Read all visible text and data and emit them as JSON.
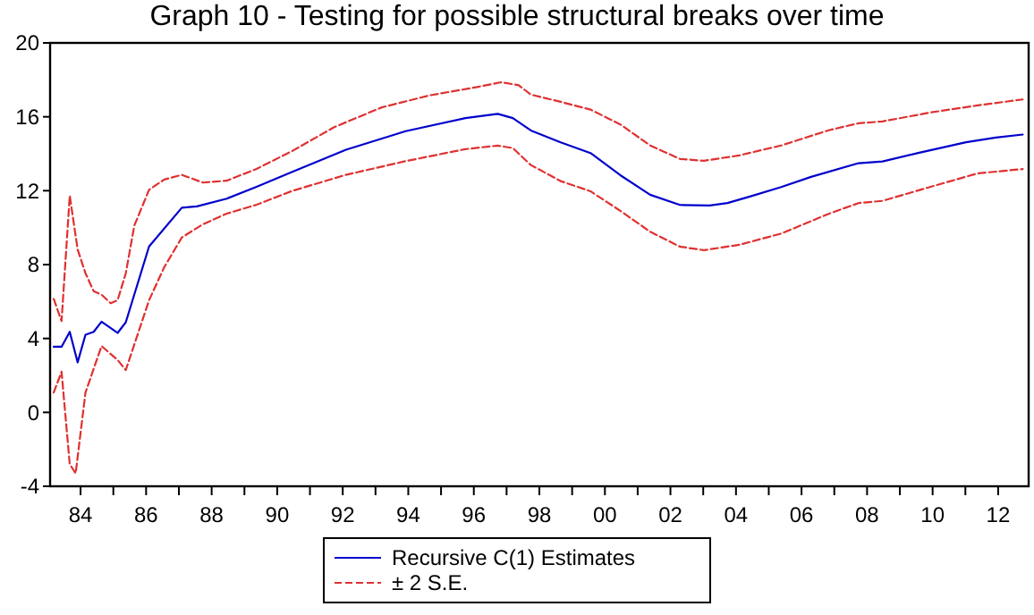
{
  "chart_data": {
    "type": "line",
    "title": "Graph 10 - Testing for possible structural breaks over time",
    "xlim": [
      1983.07,
      2012.93
    ],
    "ylim": [
      -4,
      20
    ],
    "yticks": [
      -4,
      0,
      4,
      8,
      12,
      16,
      20
    ],
    "xticks": [
      {
        "value": 1984,
        "label": "84"
      },
      {
        "value": 1985,
        "label": null
      },
      {
        "value": 1986,
        "label": "86"
      },
      {
        "value": 1987,
        "label": null
      },
      {
        "value": 1988,
        "label": "88"
      },
      {
        "value": 1989,
        "label": null
      },
      {
        "value": 1990,
        "label": "90"
      },
      {
        "value": 1991,
        "label": null
      },
      {
        "value": 1992,
        "label": "92"
      },
      {
        "value": 1993,
        "label": null
      },
      {
        "value": 1994,
        "label": "94"
      },
      {
        "value": 1995,
        "label": null
      },
      {
        "value": 1996,
        "label": "96"
      },
      {
        "value": 1997,
        "label": null
      },
      {
        "value": 1998,
        "label": "98"
      },
      {
        "value": 1999,
        "label": null
      },
      {
        "value": 2000,
        "label": "00"
      },
      {
        "value": 2001,
        "label": null
      },
      {
        "value": 2002,
        "label": "02"
      },
      {
        "value": 2003,
        "label": null
      },
      {
        "value": 2004,
        "label": "04"
      },
      {
        "value": 2005,
        "label": null
      },
      {
        "value": 2006,
        "label": "06"
      },
      {
        "value": 2007,
        "label": null
      },
      {
        "value": 2008,
        "label": "08"
      },
      {
        "value": 2009,
        "label": null
      },
      {
        "value": 2010,
        "label": "10"
      },
      {
        "value": 2011,
        "label": null
      },
      {
        "value": 2012,
        "label": "12"
      }
    ],
    "grid": false,
    "legend": "bottom",
    "marker": "none",
    "series": [
      {
        "name": "Recursive C(1) Estimates",
        "color": "#0000cc",
        "line_style": "solid",
        "x": [
          1983.18,
          1983.42,
          1983.67,
          1983.91,
          1984.15,
          1984.4,
          1984.64,
          1985.13,
          1985.38,
          1986.09,
          1987.09,
          1987.55,
          1988.46,
          1989.37,
          1990.46,
          1992.1,
          1993.92,
          1995.74,
          1996.73,
          1997.19,
          1997.74,
          1998.65,
          1999.56,
          2000.47,
          2001.38,
          2002.29,
          2003.2,
          2003.74,
          2004.47,
          2005.38,
          2006.29,
          2007.74,
          2008.47,
          2009.56,
          2011.02,
          2011.93,
          2012.75
        ],
        "values": [
          3.55,
          3.55,
          4.36,
          2.71,
          4.2,
          4.36,
          4.91,
          4.3,
          4.88,
          8.98,
          11.08,
          11.15,
          11.57,
          12.21,
          13.02,
          14.22,
          15.22,
          15.93,
          16.16,
          15.93,
          15.26,
          14.62,
          14.04,
          12.84,
          11.78,
          11.23,
          11.2,
          11.33,
          11.71,
          12.2,
          12.75,
          13.49,
          13.58,
          14.04,
          14.62,
          14.88,
          15.04
        ]
      },
      {
        "name": "± 2 S.E.",
        "color": "#e03030",
        "line_style": "dashed",
        "x": [
          1983.18,
          1983.42,
          1983.67,
          1983.91,
          1984.15,
          1984.4,
          1984.64,
          1984.92,
          1985.13,
          1985.38,
          1985.64,
          1986.09,
          1986.55,
          1987.09,
          1987.73,
          1988.46,
          1989.37,
          1990.46,
          1991.74,
          1993.19,
          1994.65,
          1996.1,
          1996.83,
          1997.37,
          1997.74,
          1998.65,
          1999.56,
          2000.47,
          2001.38,
          2002.29,
          2003.02,
          2004.1,
          2005.38,
          2006.83,
          2007.74,
          2008.47,
          2009.92,
          2011.38,
          2012.75
        ],
        "values": [
          6.14,
          4.94,
          11.73,
          8.82,
          7.53,
          6.56,
          6.37,
          5.91,
          6.07,
          7.53,
          10.11,
          12.05,
          12.6,
          12.86,
          12.44,
          12.54,
          13.18,
          14.15,
          15.44,
          16.51,
          17.16,
          17.61,
          17.87,
          17.71,
          17.2,
          16.81,
          16.39,
          15.59,
          14.45,
          13.72,
          13.62,
          13.91,
          14.45,
          15.27,
          15.65,
          15.75,
          16.23,
          16.62,
          16.94
        ]
      },
      {
        "color": "#e03030",
        "line_style": "dashed",
        "x": [
          1983.18,
          1983.42,
          1983.67,
          1983.85,
          1984.15,
          1984.4,
          1984.64,
          1985.13,
          1985.38,
          1986.09,
          1986.55,
          1987.09,
          1987.73,
          1988.46,
          1989.37,
          1990.46,
          1992.1,
          1993.92,
          1995.74,
          1996.73,
          1997.19,
          1997.74,
          1998.65,
          1999.56,
          2000.47,
          2001.38,
          2002.29,
          2003.02,
          2004.1,
          2005.38,
          2006.83,
          2007.74,
          2008.47,
          2009.92,
          2011.38,
          2012.75
        ],
        "values": [
          1.07,
          2.2,
          -2.81,
          -3.3,
          1.07,
          2.36,
          3.59,
          2.84,
          2.29,
          6.07,
          7.85,
          9.47,
          10.18,
          10.76,
          11.24,
          11.99,
          12.86,
          13.6,
          14.25,
          14.44,
          14.31,
          13.39,
          12.52,
          11.97,
          10.91,
          9.78,
          8.97,
          8.78,
          9.07,
          9.68,
          10.75,
          11.33,
          11.45,
          12.2,
          12.94,
          13.17
        ]
      }
    ]
  }
}
